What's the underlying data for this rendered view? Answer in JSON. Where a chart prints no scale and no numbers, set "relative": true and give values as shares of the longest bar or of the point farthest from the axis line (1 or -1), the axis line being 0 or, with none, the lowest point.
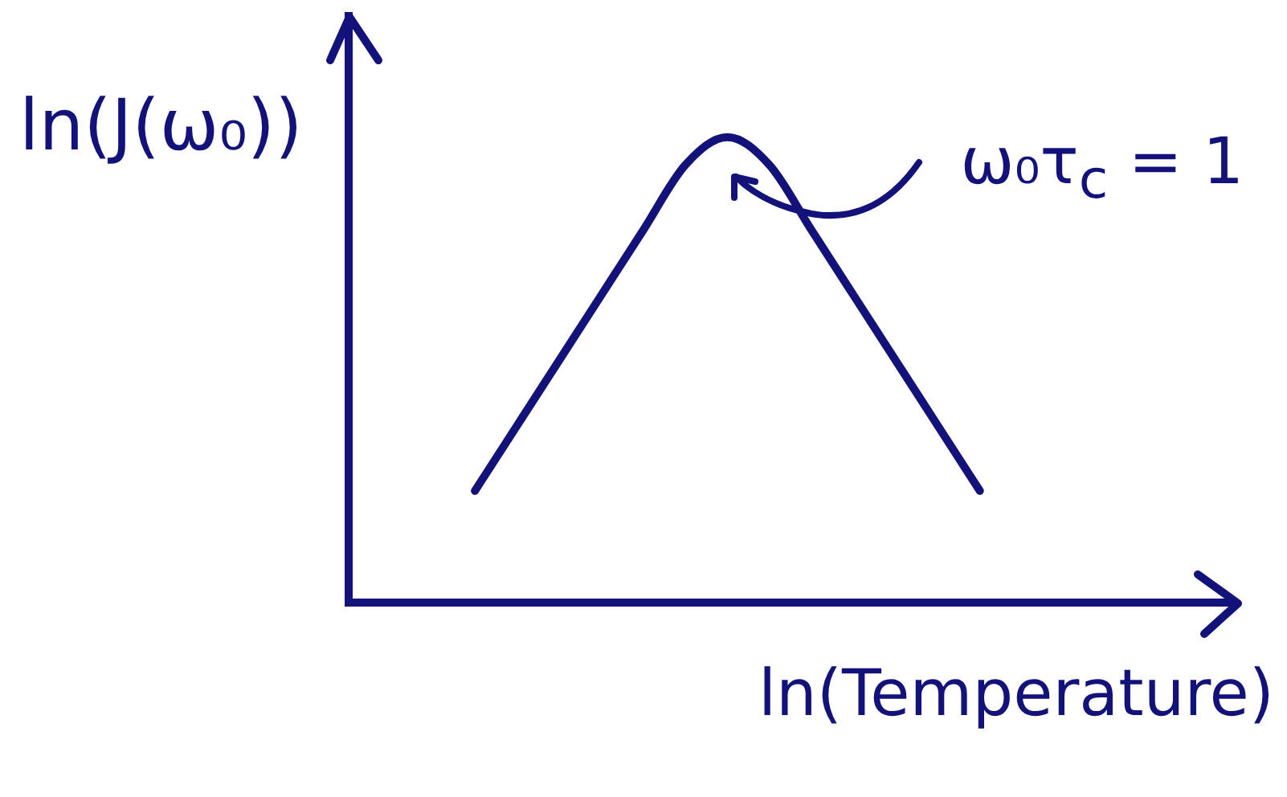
{
  "chart_data": {
    "type": "line",
    "xlabel": "ln(Temperature)",
    "ylabel": "ln(J(ω₀))",
    "annotations": [
      "ω₀τ$_{c}$ = 1"
    ],
    "relative": true,
    "tick_labels": false,
    "marker": "none",
    "line_style": "solid",
    "categories": [
      null,
      null,
      null,
      null,
      null,
      null,
      null,
      null,
      null,
      null,
      null,
      null,
      null,
      null,
      null,
      null,
      null,
      null,
      null,
      null,
      null,
      null
    ],
    "series": [
      {
        "color": "#12127a",
        "values": [
          null,
          null,
          null,
          0.24,
          0.38,
          0.52,
          0.66,
          0.8,
          0.94,
          1,
          0.94,
          0.8,
          0.66,
          0.52,
          0.38,
          0.24,
          null,
          null,
          null,
          null,
          null,
          null
        ]
      }
    ]
  }
}
